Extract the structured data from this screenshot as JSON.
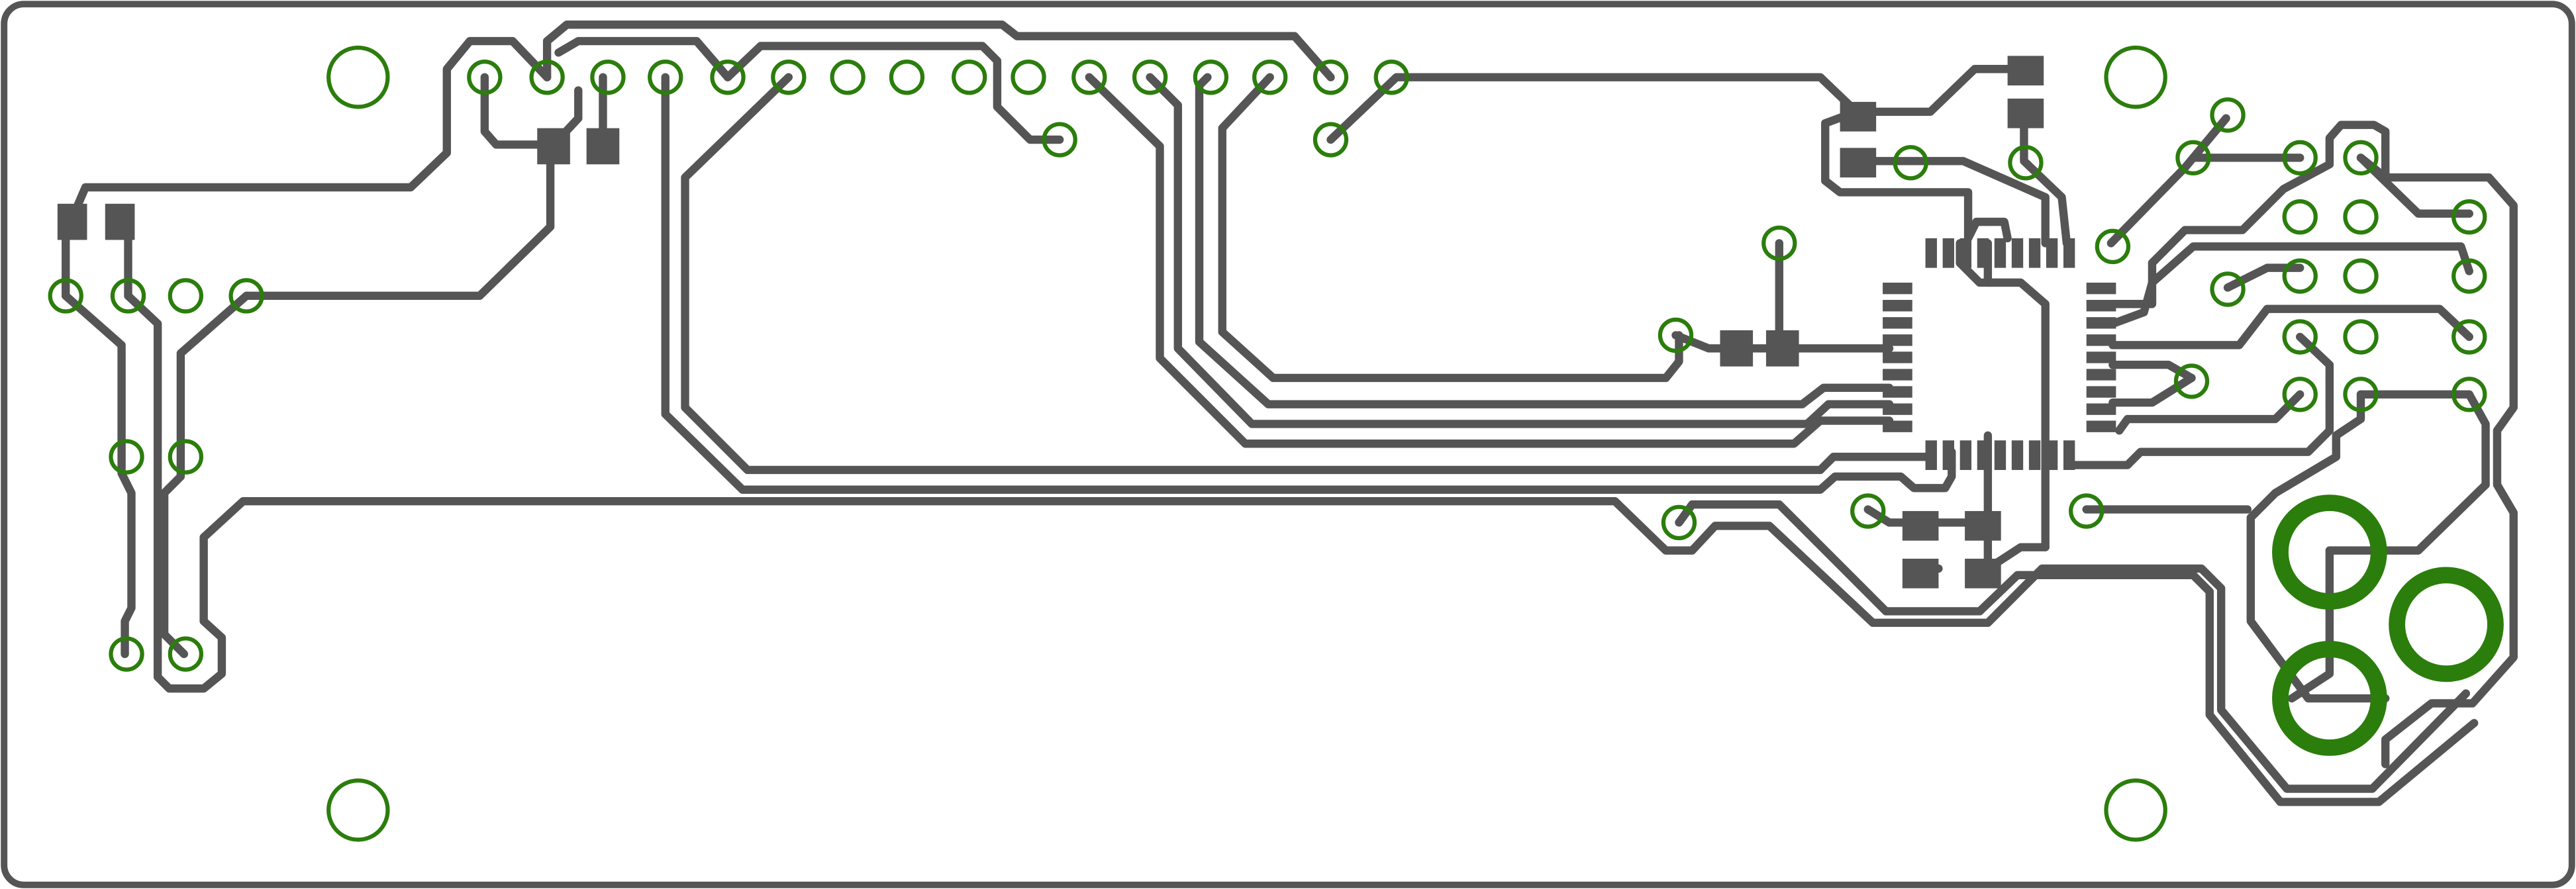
{
  "board": {
    "colors": {
      "background": "#ffffff",
      "outline": "#555555",
      "trace": "#555555",
      "pad": "#555555",
      "hole": "#2b7d0c"
    },
    "counts": {
      "mounting_holes": 4,
      "large_holes": 3,
      "smd_pads": 15,
      "ic_chips": 1
    }
  }
}
